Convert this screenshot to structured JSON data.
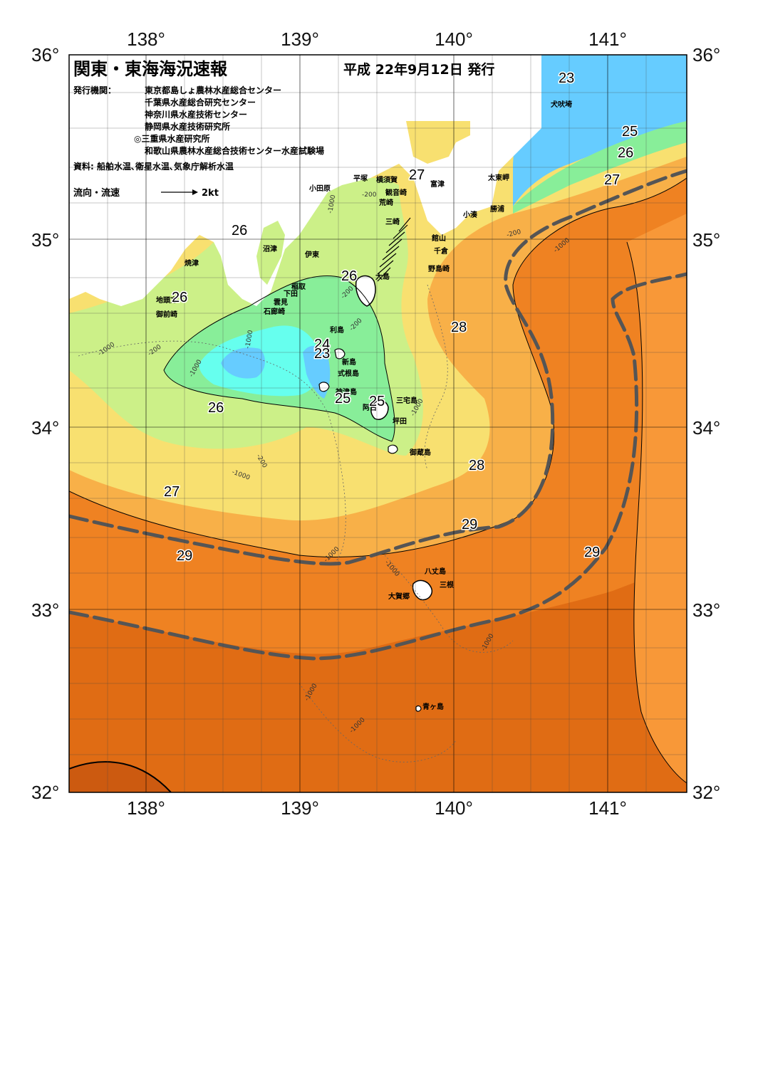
{
  "header": {
    "title": "関東・東海海況速報",
    "issue_date": "平成 22年9月12日 発行",
    "issuer_label": "発行機関：",
    "issuers": [
      "東京都島しょ農林水産総合センター",
      "千葉県水産総合研究センター",
      "神奈川県水産技術センター",
      "静岡県水産技術研究所",
      "◎三重県水産研究所",
      "和歌山県農林水産総合技術センター水産試験場"
    ],
    "source": "資料: 船舶水温､衛星水温､気象庁解析水温",
    "legend_label": "流向・流速",
    "legend_speed": "2kt"
  },
  "axes": {
    "lon_labels": [
      "138°",
      "139°",
      "140°",
      "141°"
    ],
    "lat_labels": [
      "36°",
      "35°",
      "34°",
      "33°",
      "32°"
    ]
  },
  "place_names": [
    "平塚",
    "横須賀",
    "小田原",
    "観音崎",
    "富津",
    "荒崎",
    "太東岬",
    "三崎",
    "勝浦",
    "小湊",
    "館山",
    "千倉",
    "野島崎",
    "沼津",
    "伊東",
    "焼津",
    "稲取",
    "下田",
    "雲見",
    "石廊崎",
    "地頭方",
    "御前崎",
    "大島",
    "利島",
    "新島",
    "式根島",
    "神津島",
    "三宅島",
    "阿古",
    "坪田",
    "御蔵島",
    "八丈島",
    "三根",
    "大賀郷",
    "青ヶ島",
    "犬吠埼"
  ],
  "temperature_labels": [
    "23",
    "25",
    "26",
    "27",
    "26",
    "26",
    "26",
    "27",
    "26",
    "24",
    "23",
    "25",
    "25",
    "28",
    "28",
    "27",
    "29",
    "29",
    "29"
  ],
  "depth_labels": [
    "-1000",
    "-200"
  ],
  "colors": {
    "sea_23": "#66ccff",
    "sea_24": "#66ffee",
    "sea_25": "#88ee99",
    "sea_26": "#ccf088",
    "sea_27": "#f8e070",
    "sea_28": "#f8b048",
    "sea_28_5": "#f89838",
    "sea_29": "#ef8222",
    "sea_29_5": "#e06c14",
    "sea_30": "#cc5a10",
    "land": "#ffffff",
    "kuroshio_axis": "#555555"
  }
}
